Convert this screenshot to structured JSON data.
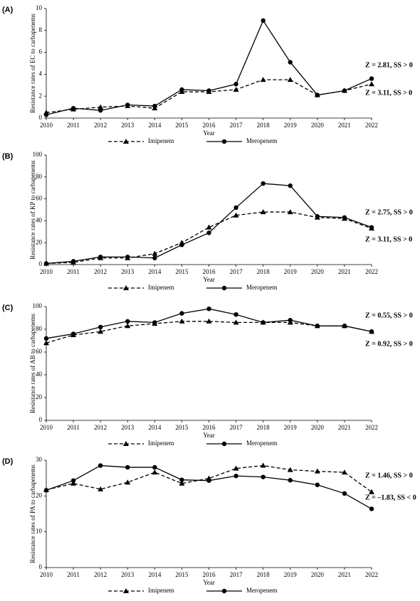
{
  "chart_data": [
    {
      "type": "line",
      "panel_label": "(A)",
      "ylabel": "Resistance rates of EC to carbapenems",
      "xlabel": "Year",
      "x": [
        2010,
        2011,
        2012,
        2013,
        2014,
        2015,
        2016,
        2017,
        2018,
        2019,
        2020,
        2021,
        2022
      ],
      "xlim": [
        2010,
        2022
      ],
      "xticks": [
        2010,
        2011,
        2012,
        2013,
        2014,
        2015,
        2016,
        2017,
        2018,
        2019,
        2020,
        2021,
        2022
      ],
      "ylim": [
        0,
        10
      ],
      "yticks": [
        0,
        2,
        4,
        6,
        8,
        10
      ],
      "series": [
        {
          "name": "Imipenem",
          "color": "#000000",
          "line_style": "dashed",
          "marker": "triangle",
          "values": [
            0.5,
            0.8,
            1.0,
            1.1,
            0.9,
            2.4,
            2.4,
            2.6,
            3.5,
            3.5,
            2.1,
            2.5,
            3.1
          ]
        },
        {
          "name": "Meropenem",
          "color": "#000000",
          "line_style": "solid",
          "marker": "circle",
          "values": [
            0.3,
            0.9,
            0.7,
            1.2,
            1.1,
            2.6,
            2.5,
            3.1,
            8.9,
            5.1,
            2.1,
            2.5,
            3.6
          ]
        }
      ],
      "annotations": [
        "Z = 2.81, SS > 0",
        "Z = 3.11, SS > 0"
      ]
    },
    {
      "type": "line",
      "panel_label": "(B)",
      "ylabel": "Resistance rates of KP to carbapenems",
      "xlabel": "Year",
      "x": [
        2010,
        2011,
        2012,
        2013,
        2014,
        2015,
        2016,
        2017,
        2018,
        2019,
        2020,
        2021,
        2022
      ],
      "xlim": [
        2010,
        2022
      ],
      "xticks": [
        2010,
        2011,
        2012,
        2013,
        2014,
        2015,
        2016,
        2017,
        2018,
        2019,
        2020,
        2021,
        2022
      ],
      "ylim": [
        0,
        100
      ],
      "yticks": [
        0,
        20,
        40,
        60,
        80,
        100
      ],
      "series": [
        {
          "name": "Imipenem",
          "color": "#000000",
          "line_style": "dashed",
          "marker": "triangle",
          "values": [
            1,
            2,
            6,
            6,
            10,
            20,
            34,
            45,
            48,
            48,
            43,
            42,
            33
          ]
        },
        {
          "name": "Meropenem",
          "color": "#000000",
          "line_style": "solid",
          "marker": "circle",
          "values": [
            1,
            3,
            7,
            7,
            6,
            18,
            29,
            52,
            74,
            72,
            44,
            43,
            34
          ]
        }
      ],
      "annotations": [
        "Z = 2.75, SS > 0",
        "Z = 3.11, SS > 0"
      ]
    },
    {
      "type": "line",
      "panel_label": "(C)",
      "ylabel": "Resistance rates of AB to carbapenems",
      "xlabel": "Year",
      "x": [
        2010,
        2011,
        2012,
        2013,
        2014,
        2015,
        2016,
        2017,
        2018,
        2019,
        2020,
        2021,
        2022
      ],
      "xlim": [
        2010,
        2022
      ],
      "xticks": [
        2010,
        2011,
        2012,
        2013,
        2014,
        2015,
        2016,
        2017,
        2018,
        2019,
        2020,
        2021,
        2022
      ],
      "ylim": [
        0,
        100
      ],
      "yticks": [
        0,
        20,
        40,
        60,
        80,
        100
      ],
      "series": [
        {
          "name": "Imipenem",
          "color": "#000000",
          "line_style": "dashed",
          "marker": "triangle",
          "values": [
            68,
            75,
            78,
            83,
            85,
            87,
            87,
            86,
            86,
            86,
            83,
            83,
            78
          ]
        },
        {
          "name": "Meropenem",
          "color": "#000000",
          "line_style": "solid",
          "marker": "circle",
          "values": [
            72,
            76,
            82,
            87,
            86,
            94,
            98,
            93,
            86,
            88,
            83,
            83,
            78
          ]
        }
      ],
      "annotations": [
        "Z = 0.55, SS > 0",
        "Z = 0.92, SS > 0"
      ]
    },
    {
      "type": "line",
      "panel_label": "(D)",
      "ylabel": "Resistance rates of PA to carbapenems",
      "xlabel": "Year",
      "x": [
        2010,
        2011,
        2012,
        2013,
        2014,
        2015,
        2016,
        2017,
        2018,
        2019,
        2020,
        2021,
        2022
      ],
      "xlim": [
        2010,
        2022
      ],
      "xticks": [
        2010,
        2011,
        2012,
        2013,
        2014,
        2015,
        2016,
        2017,
        2018,
        2019,
        2020,
        2021,
        2022
      ],
      "ylim": [
        0,
        30
      ],
      "yticks": [
        0,
        10,
        20,
        30
      ],
      "series": [
        {
          "name": "Imipenem",
          "color": "#000000",
          "line_style": "dashed",
          "marker": "triangle",
          "values": [
            21.7,
            23.5,
            21.9,
            23.8,
            26.6,
            23.5,
            24.9,
            27.7,
            28.5,
            27.3,
            26.9,
            26.6,
            21.1
          ]
        },
        {
          "name": "Meropenem",
          "color": "#000000",
          "line_style": "solid",
          "marker": "circle",
          "values": [
            21.6,
            24.3,
            28.5,
            28.0,
            28.0,
            24.5,
            24.3,
            25.6,
            25.3,
            24.4,
            23.1,
            20.7,
            16.4
          ]
        }
      ],
      "annotations": [
        "Z = 1.46, SS > 0",
        "Z = –1.83, SS < 0"
      ]
    }
  ]
}
